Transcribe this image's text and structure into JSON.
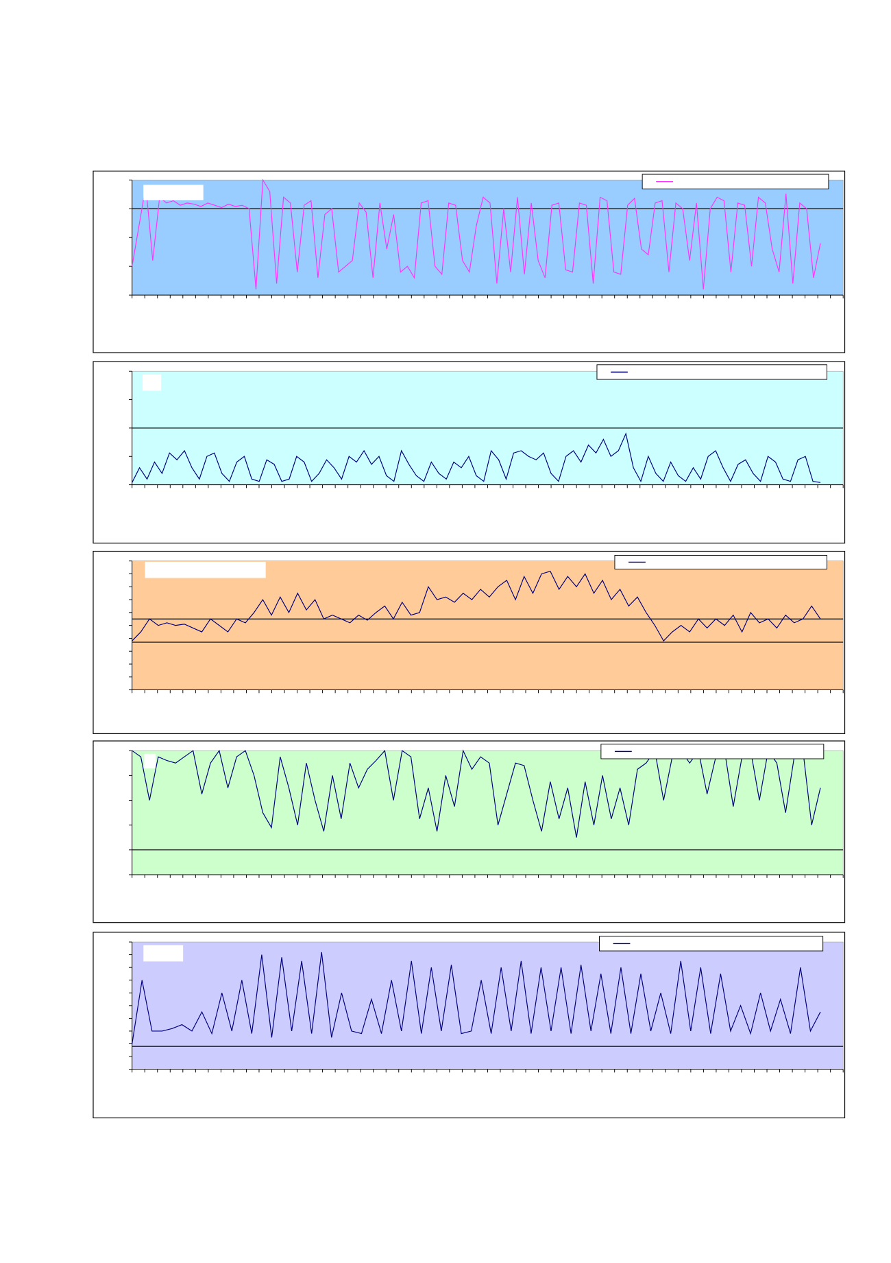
{
  "chart_data": [
    {
      "type": "line",
      "background": "#99ccff",
      "color": "#ff33ff",
      "ylim": [
        0,
        100
      ],
      "yticks": [
        0,
        25,
        50,
        75,
        100
      ],
      "ref_lines": [
        75
      ],
      "values": [
        25,
        60,
        95,
        30,
        85,
        80,
        82,
        78,
        80,
        79,
        77,
        80,
        78,
        76,
        79,
        77,
        78,
        75,
        5,
        100,
        90,
        10,
        85,
        80,
        20,
        78,
        82,
        15,
        70,
        75,
        20,
        25,
        30,
        80,
        72,
        15,
        80,
        40,
        70,
        20,
        25,
        15,
        80,
        82,
        25,
        18,
        80,
        78,
        30,
        20,
        60,
        85,
        80,
        10,
        75,
        20,
        85,
        18,
        80,
        30,
        15,
        78,
        80,
        22,
        20,
        80,
        78,
        10,
        85,
        82,
        20,
        18,
        78,
        84,
        40,
        35,
        80,
        82,
        20,
        80,
        75,
        30,
        80,
        5,
        75,
        85,
        82,
        20,
        80,
        78,
        25,
        85,
        80,
        40,
        20,
        88,
        10,
        80,
        75,
        15,
        45
      ]
    },
    {
      "type": "line",
      "background": "#ccffff",
      "color": "#000080",
      "ylim": [
        0,
        100
      ],
      "yticks": [
        0,
        25,
        50,
        75,
        100
      ],
      "ref_lines": [
        50
      ],
      "values": [
        2,
        15,
        5,
        20,
        10,
        28,
        22,
        30,
        15,
        5,
        25,
        28,
        10,
        3,
        20,
        25,
        5,
        3,
        22,
        18,
        3,
        5,
        25,
        20,
        3,
        10,
        22,
        15,
        5,
        25,
        20,
        30,
        18,
        25,
        8,
        3,
        30,
        18,
        8,
        3,
        20,
        10,
        5,
        20,
        15,
        25,
        8,
        3,
        30,
        22,
        5,
        28,
        30,
        25,
        22,
        28,
        10,
        3,
        25,
        30,
        20,
        35,
        28,
        40,
        25,
        30,
        45,
        15,
        3,
        25,
        10,
        3,
        20,
        8,
        3,
        15,
        5,
        25,
        30,
        15,
        3,
        18,
        22,
        10,
        3,
        25,
        20,
        5,
        3,
        22,
        25,
        3,
        2
      ]
    },
    {
      "type": "line",
      "background": "#ffcc99",
      "color": "#000080",
      "ylim": [
        0,
        100
      ],
      "yticks": [
        0,
        10,
        20,
        30,
        40,
        50,
        60,
        70,
        80,
        90,
        100
      ],
      "ref_lines": [
        55,
        37
      ],
      "values": [
        38,
        45,
        55,
        50,
        52,
        50,
        51,
        48,
        45,
        55,
        50,
        45,
        55,
        52,
        60,
        70,
        58,
        72,
        60,
        75,
        62,
        70,
        55,
        58,
        55,
        52,
        58,
        54,
        60,
        65,
        55,
        68,
        58,
        60,
        80,
        70,
        72,
        68,
        75,
        70,
        78,
        72,
        80,
        85,
        70,
        88,
        75,
        90,
        92,
        78,
        88,
        80,
        90,
        75,
        85,
        70,
        78,
        65,
        72,
        60,
        50,
        38,
        45,
        50,
        45,
        55,
        48,
        55,
        50,
        58,
        45,
        60,
        52,
        55,
        48,
        58,
        52,
        55,
        65,
        55
      ]
    },
    {
      "type": "line",
      "background": "#ccffcc",
      "color": "#000080",
      "ylim": [
        0,
        100
      ],
      "yticks": [
        0,
        20,
        40,
        60,
        80,
        100
      ],
      "ref_lines": [
        20
      ],
      "values": [
        100,
        95,
        60,
        95,
        92,
        90,
        95,
        100,
        65,
        90,
        100,
        70,
        95,
        100,
        80,
        50,
        38,
        95,
        70,
        40,
        90,
        60,
        35,
        80,
        45,
        90,
        70,
        85,
        92,
        100,
        60,
        100,
        95,
        45,
        70,
        35,
        80,
        55,
        100,
        85,
        95,
        90,
        40,
        65,
        90,
        88,
        60,
        35,
        75,
        45,
        70,
        30,
        75,
        40,
        80,
        45,
        70,
        40,
        85,
        90,
        100,
        60,
        95,
        100,
        90,
        100,
        65,
        95,
        100,
        55,
        95,
        100,
        60,
        100,
        90,
        50,
        95,
        100,
        40,
        70
      ]
    },
    {
      "type": "line",
      "background": "#ccccff",
      "color": "#000080",
      "ylim": [
        0,
        100
      ],
      "yticks": [
        0,
        10,
        20,
        30,
        40,
        50,
        60,
        70,
        80,
        90,
        100
      ],
      "ref_lines": [
        18
      ],
      "values": [
        20,
        70,
        30,
        30,
        32,
        35,
        30,
        45,
        28,
        60,
        30,
        70,
        28,
        90,
        25,
        88,
        30,
        85,
        28,
        92,
        25,
        60,
        30,
        28,
        55,
        28,
        70,
        30,
        85,
        28,
        80,
        30,
        82,
        28,
        30,
        70,
        28,
        80,
        30,
        85,
        28,
        80,
        30,
        80,
        28,
        82,
        30,
        75,
        28,
        80,
        28,
        75,
        30,
        60,
        28,
        85,
        30,
        80,
        28,
        75,
        30,
        50,
        28,
        60,
        30,
        55,
        28,
        80,
        30,
        45
      ]
    }
  ]
}
